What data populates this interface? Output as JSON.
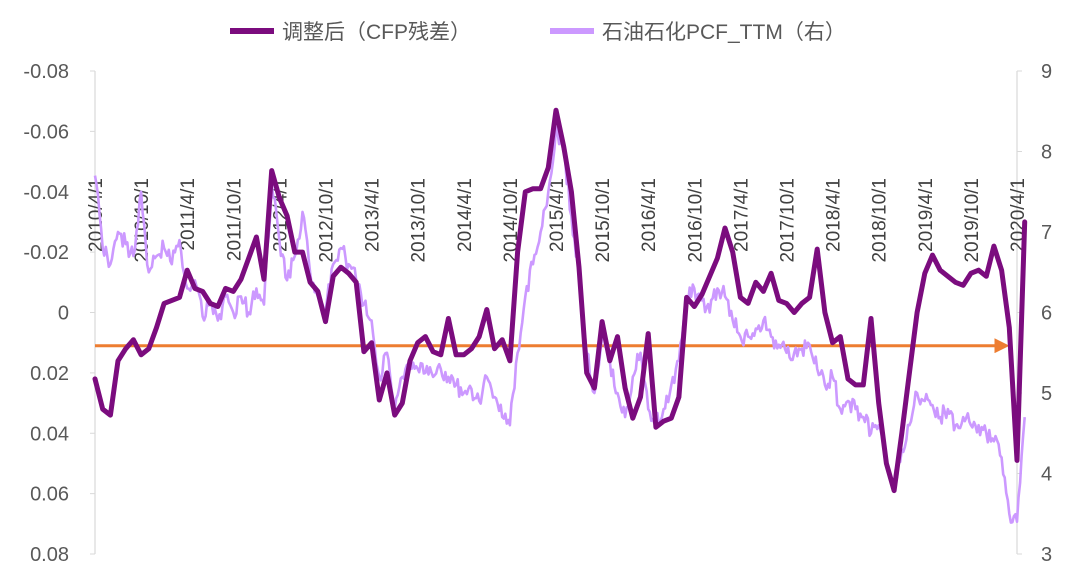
{
  "chart_data": {
    "type": "line",
    "legend": {
      "position": "top"
    },
    "x_tick_labels": [
      "2010/4/1",
      "2010/10/1",
      "2011/4/1",
      "2011/10/1",
      "2012/4/1",
      "2012/10/1",
      "2013/4/1",
      "2013/10/1",
      "2014/4/1",
      "2014/10/1",
      "2015/4/1",
      "2015/10/1",
      "2016/4/1",
      "2016/10/1",
      "2017/4/1",
      "2017/10/1",
      "2018/4/1",
      "2018/10/1",
      "2019/4/1",
      "2019/10/1",
      "2020/4/1"
    ],
    "y_left": {
      "min": -0.08,
      "max": 0.08,
      "inverted": true,
      "ticks": [
        "-0.08",
        "-0.06",
        "-0.04",
        "-0.02",
        "0",
        "0.02",
        "0.04",
        "0.06",
        "0.08"
      ]
    },
    "y_right": {
      "min": 3,
      "max": 9,
      "ticks": [
        "3",
        "4",
        "5",
        "6",
        "7",
        "8",
        "9"
      ]
    },
    "reference_line": {
      "axis": "left",
      "value": 0.011,
      "color": "#ED7D31"
    },
    "series": [
      {
        "name": "调整后（CFP残差）",
        "axis": "left",
        "color": "#7B0C7E",
        "points": [
          [
            "2010/4/1",
            0.022
          ],
          [
            "2010/5/1",
            0.032
          ],
          [
            "2010/6/1",
            0.034
          ],
          [
            "2010/7/1",
            0.016
          ],
          [
            "2010/8/1",
            0.012
          ],
          [
            "2010/9/1",
            0.009
          ],
          [
            "2010/10/1",
            0.014
          ],
          [
            "2010/11/1",
            0.012
          ],
          [
            "2010/12/1",
            0.005
          ],
          [
            "2011/1/1",
            -0.003
          ],
          [
            "2011/2/1",
            -0.004
          ],
          [
            "2011/3/1",
            -0.005
          ],
          [
            "2011/4/1",
            -0.014
          ],
          [
            "2011/5/1",
            -0.008
          ],
          [
            "2011/6/1",
            -0.007
          ],
          [
            "2011/7/1",
            -0.003
          ],
          [
            "2011/8/1",
            -0.002
          ],
          [
            "2011/9/1",
            -0.008
          ],
          [
            "2011/10/1",
            -0.007
          ],
          [
            "2011/11/1",
            -0.011
          ],
          [
            "2011/12/1",
            -0.018
          ],
          [
            "2012/1/1",
            -0.025
          ],
          [
            "2012/2/1",
            -0.011
          ],
          [
            "2012/3/1",
            -0.047
          ],
          [
            "2012/4/1",
            -0.038
          ],
          [
            "2012/5/1",
            -0.032
          ],
          [
            "2012/6/1",
            -0.02
          ],
          [
            "2012/7/1",
            -0.02
          ],
          [
            "2012/8/1",
            -0.01
          ],
          [
            "2012/9/1",
            -0.007
          ],
          [
            "2012/10/1",
            0.003
          ],
          [
            "2012/11/1",
            -0.012
          ],
          [
            "2012/12/1",
            -0.015
          ],
          [
            "2013/1/1",
            -0.013
          ],
          [
            "2013/2/1",
            -0.01
          ],
          [
            "2013/3/1",
            0.013
          ],
          [
            "2013/4/1",
            0.01
          ],
          [
            "2013/5/1",
            0.029
          ],
          [
            "2013/6/1",
            0.02
          ],
          [
            "2013/7/1",
            0.034
          ],
          [
            "2013/8/1",
            0.03
          ],
          [
            "2013/9/1",
            0.016
          ],
          [
            "2013/10/1",
            0.01
          ],
          [
            "2013/11/1",
            0.008
          ],
          [
            "2013/12/1",
            0.013
          ],
          [
            "2014/1/1",
            0.014
          ],
          [
            "2014/2/1",
            0.002
          ],
          [
            "2014/3/1",
            0.014
          ],
          [
            "2014/4/1",
            0.014
          ],
          [
            "2014/5/1",
            0.012
          ],
          [
            "2014/6/1",
            0.008
          ],
          [
            "2014/7/1",
            -0.001
          ],
          [
            "2014/8/1",
            0.012
          ],
          [
            "2014/9/1",
            0.009
          ],
          [
            "2014/10/1",
            0.016
          ],
          [
            "2014/11/1",
            -0.02
          ],
          [
            "2014/12/1",
            -0.04
          ],
          [
            "2015/1/1",
            -0.041
          ],
          [
            "2015/2/1",
            -0.041
          ],
          [
            "2015/3/1",
            -0.048
          ],
          [
            "2015/4/1",
            -0.067
          ],
          [
            "2015/5/1",
            -0.055
          ],
          [
            "2015/6/1",
            -0.04
          ],
          [
            "2015/7/1",
            -0.015
          ],
          [
            "2015/8/1",
            0.02
          ],
          [
            "2015/9/1",
            0.025
          ],
          [
            "2015/10/1",
            0.003
          ],
          [
            "2015/11/1",
            0.016
          ],
          [
            "2015/12/1",
            0.008
          ],
          [
            "2016/1/1",
            0.025
          ],
          [
            "2016/2/1",
            0.035
          ],
          [
            "2016/3/1",
            0.028
          ],
          [
            "2016/4/1",
            0.007
          ],
          [
            "2016/5/1",
            0.038
          ],
          [
            "2016/6/1",
            0.036
          ],
          [
            "2016/7/1",
            0.035
          ],
          [
            "2016/8/1",
            0.028
          ],
          [
            "2016/9/1",
            -0.005
          ],
          [
            "2016/10/1",
            -0.002
          ],
          [
            "2016/11/1",
            -0.006
          ],
          [
            "2016/12/1",
            -0.012
          ],
          [
            "2017/1/1",
            -0.018
          ],
          [
            "2017/2/1",
            -0.028
          ],
          [
            "2017/3/1",
            -0.02
          ],
          [
            "2017/4/1",
            -0.005
          ],
          [
            "2017/5/1",
            -0.003
          ],
          [
            "2017/6/1",
            -0.01
          ],
          [
            "2017/7/1",
            -0.007
          ],
          [
            "2017/8/1",
            -0.013
          ],
          [
            "2017/9/1",
            -0.004
          ],
          [
            "2017/10/1",
            -0.003
          ],
          [
            "2017/11/1",
            0.0
          ],
          [
            "2017/12/1",
            -0.003
          ],
          [
            "2018/1/1",
            -0.005
          ],
          [
            "2018/2/1",
            -0.021
          ],
          [
            "2018/3/1",
            0.0
          ],
          [
            "2018/4/1",
            0.01
          ],
          [
            "2018/5/1",
            0.008
          ],
          [
            "2018/6/1",
            0.022
          ],
          [
            "2018/7/1",
            0.024
          ],
          [
            "2018/8/1",
            0.024
          ],
          [
            "2018/9/1",
            0.002
          ],
          [
            "2018/10/1",
            0.03
          ],
          [
            "2018/11/1",
            0.05
          ],
          [
            "2018/12/1",
            0.059
          ],
          [
            "2019/1/1",
            0.04
          ],
          [
            "2019/2/1",
            0.02
          ],
          [
            "2019/3/1",
            0.0
          ],
          [
            "2019/4/1",
            -0.013
          ],
          [
            "2019/5/1",
            -0.019
          ],
          [
            "2019/6/1",
            -0.014
          ],
          [
            "2019/7/1",
            -0.012
          ],
          [
            "2019/8/1",
            -0.01
          ],
          [
            "2019/9/1",
            -0.009
          ],
          [
            "2019/10/1",
            -0.013
          ],
          [
            "2019/11/1",
            -0.014
          ],
          [
            "2019/12/1",
            -0.012
          ],
          [
            "2020/1/1",
            -0.022
          ],
          [
            "2020/2/1",
            -0.014
          ],
          [
            "2020/3/1",
            0.005
          ],
          [
            "2020/4/1",
            0.049
          ],
          [
            "2020/5/1",
            -0.03
          ]
        ]
      },
      {
        "name": "石油石化PCF_TTM（右）",
        "axis": "right",
        "color": "#CC99FF",
        "points": [
          [
            "2010/4/1",
            7.7
          ],
          [
            "2010/5/1",
            6.8
          ],
          [
            "2010/6/1",
            6.6
          ],
          [
            "2010/7/1",
            7.0
          ],
          [
            "2010/8/1",
            6.85
          ],
          [
            "2010/9/1",
            6.7
          ],
          [
            "2010/10/1",
            7.5
          ],
          [
            "2010/11/1",
            6.5
          ],
          [
            "2010/12/1",
            6.7
          ],
          [
            "2011/1/1",
            6.8
          ],
          [
            "2011/2/1",
            6.6
          ],
          [
            "2011/3/1",
            6.9
          ],
          [
            "2011/4/1",
            6.3
          ],
          [
            "2011/5/1",
            6.4
          ],
          [
            "2011/6/1",
            5.95
          ],
          [
            "2011/7/1",
            6.1
          ],
          [
            "2011/8/1",
            5.9
          ],
          [
            "2011/9/1",
            6.2
          ],
          [
            "2011/10/1",
            6.0
          ],
          [
            "2011/11/1",
            6.2
          ],
          [
            "2011/12/1",
            6.0
          ],
          [
            "2012/1/1",
            6.3
          ],
          [
            "2012/2/1",
            6.1
          ],
          [
            "2012/3/1",
            7.6
          ],
          [
            "2012/4/1",
            6.9
          ],
          [
            "2012/5/1",
            6.4
          ],
          [
            "2012/6/1",
            6.7
          ],
          [
            "2012/7/1",
            7.25
          ],
          [
            "2012/8/1",
            6.5
          ],
          [
            "2012/9/1",
            6.2
          ],
          [
            "2012/10/1",
            6.0
          ],
          [
            "2012/11/1",
            6.6
          ],
          [
            "2012/12/1",
            6.8
          ],
          [
            "2013/1/1",
            6.6
          ],
          [
            "2013/2/1",
            6.4
          ],
          [
            "2013/3/1",
            6.1
          ],
          [
            "2013/4/1",
            5.9
          ],
          [
            "2013/5/1",
            5.2
          ],
          [
            "2013/6/1",
            5.5
          ],
          [
            "2013/7/1",
            4.8
          ],
          [
            "2013/8/1",
            5.2
          ],
          [
            "2013/9/1",
            5.4
          ],
          [
            "2013/10/1",
            5.3
          ],
          [
            "2013/11/1",
            5.25
          ],
          [
            "2013/12/1",
            5.2
          ],
          [
            "2014/1/1",
            5.3
          ],
          [
            "2014/2/1",
            5.2
          ],
          [
            "2014/3/1",
            5.1
          ],
          [
            "2014/4/1",
            5.0
          ],
          [
            "2014/5/1",
            5.05
          ],
          [
            "2014/6/1",
            4.9
          ],
          [
            "2014/7/1",
            5.2
          ],
          [
            "2014/8/1",
            4.95
          ],
          [
            "2014/9/1",
            4.7
          ],
          [
            "2014/10/1",
            4.6
          ],
          [
            "2014/11/1",
            5.5
          ],
          [
            "2014/12/1",
            6.2
          ],
          [
            "2015/1/1",
            6.6
          ],
          [
            "2015/2/1",
            7.0
          ],
          [
            "2015/3/1",
            7.5
          ],
          [
            "2015/4/1",
            8.3
          ],
          [
            "2015/5/1",
            8.0
          ],
          [
            "2015/6/1",
            7.2
          ],
          [
            "2015/7/1",
            6.5
          ],
          [
            "2015/8/1",
            5.5
          ],
          [
            "2015/9/1",
            5.0
          ],
          [
            "2015/10/1",
            5.7
          ],
          [
            "2015/11/1",
            5.4
          ],
          [
            "2015/12/1",
            5.0
          ],
          [
            "2016/1/1",
            4.7
          ],
          [
            "2016/2/1",
            5.2
          ],
          [
            "2016/3/1",
            5.5
          ],
          [
            "2016/4/1",
            4.8
          ],
          [
            "2016/5/1",
            4.6
          ],
          [
            "2016/6/1",
            4.8
          ],
          [
            "2016/7/1",
            5.1
          ],
          [
            "2016/8/1",
            5.4
          ],
          [
            "2016/9/1",
            6.2
          ],
          [
            "2016/10/1",
            6.3
          ],
          [
            "2016/11/1",
            6.15
          ],
          [
            "2016/12/1",
            6.0
          ],
          [
            "2017/1/1",
            6.3
          ],
          [
            "2017/2/1",
            6.2
          ],
          [
            "2017/3/1",
            5.9
          ],
          [
            "2017/4/1",
            5.7
          ],
          [
            "2017/5/1",
            5.7
          ],
          [
            "2017/6/1",
            5.8
          ],
          [
            "2017/7/1",
            5.9
          ],
          [
            "2017/8/1",
            5.7
          ],
          [
            "2017/9/1",
            5.6
          ],
          [
            "2017/10/1",
            5.5
          ],
          [
            "2017/11/1",
            5.5
          ],
          [
            "2017/12/1",
            5.55
          ],
          [
            "2018/1/1",
            5.6
          ],
          [
            "2018/2/1",
            5.3
          ],
          [
            "2018/3/1",
            5.1
          ],
          [
            "2018/4/1",
            5.2
          ],
          [
            "2018/5/1",
            4.8
          ],
          [
            "2018/6/1",
            4.9
          ],
          [
            "2018/7/1",
            4.8
          ],
          [
            "2018/8/1",
            4.7
          ],
          [
            "2018/9/1",
            4.5
          ],
          [
            "2018/10/1",
            4.6
          ],
          [
            "2018/11/1",
            4.2
          ],
          [
            "2018/12/1",
            3.9
          ],
          [
            "2019/1/1",
            4.3
          ],
          [
            "2019/2/1",
            4.6
          ],
          [
            "2019/3/1",
            5.0
          ],
          [
            "2019/4/1",
            4.9
          ],
          [
            "2019/5/1",
            4.85
          ],
          [
            "2019/6/1",
            4.7
          ],
          [
            "2019/7/1",
            4.8
          ],
          [
            "2019/8/1",
            4.6
          ],
          [
            "2019/9/1",
            4.7
          ],
          [
            "2019/10/1",
            4.6
          ],
          [
            "2019/11/1",
            4.6
          ],
          [
            "2019/12/1",
            4.5
          ],
          [
            "2020/1/1",
            4.4
          ],
          [
            "2020/2/1",
            4.2
          ],
          [
            "2020/3/1",
            3.5
          ],
          [
            "2020/4/1",
            3.4
          ],
          [
            "2020/5/1",
            4.7
          ]
        ]
      }
    ]
  }
}
